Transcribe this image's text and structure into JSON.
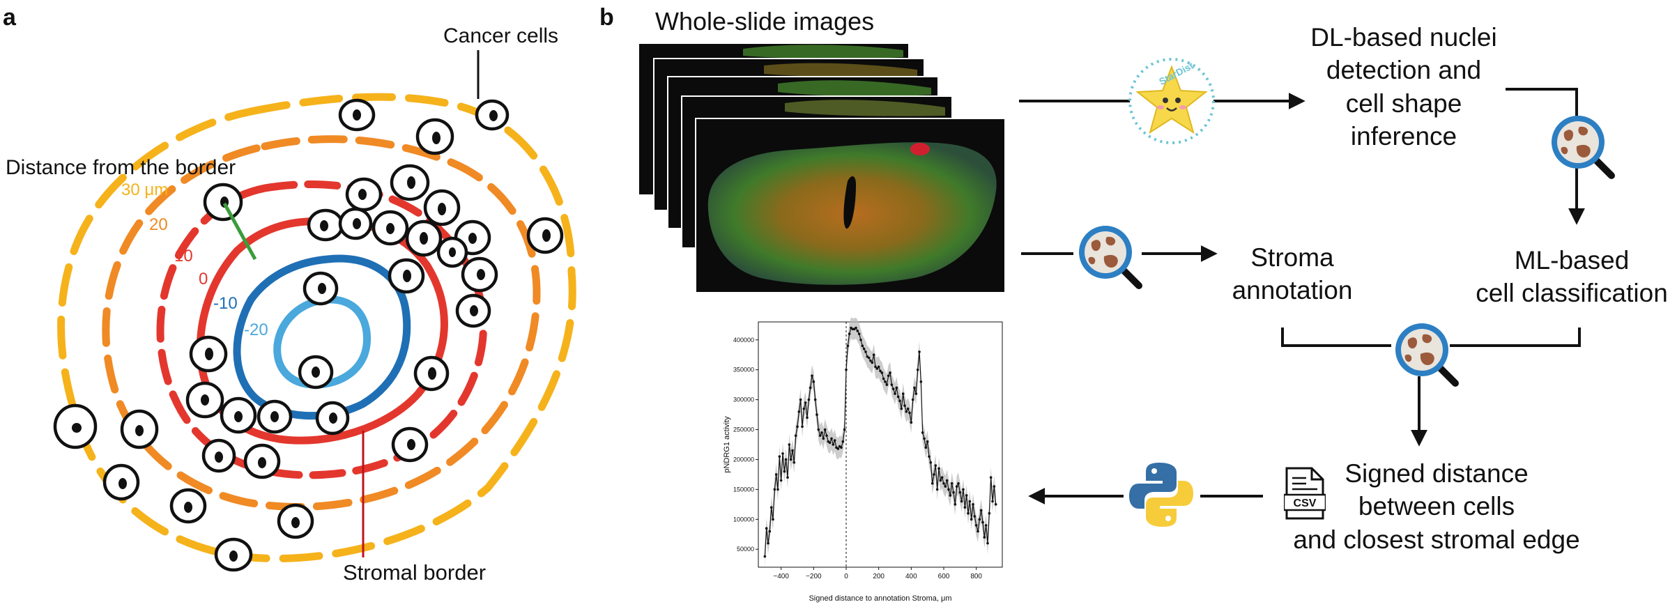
{
  "panel_a": {
    "letter": "a",
    "cancer_cells_label": "Cancer cells",
    "distance_label": "Distance from the border",
    "stromal_border_label": "Stromal border",
    "contour_labels": [
      {
        "text": "30 μm",
        "color": "#f5b21b"
      },
      {
        "text": "20",
        "color": "#f08a24"
      },
      {
        "text": "10",
        "color": "#e3372e"
      },
      {
        "text": "0",
        "color": "#e3372e"
      },
      {
        "text": "-10",
        "color": "#1f6fb5"
      },
      {
        "text": "-20",
        "color": "#4aa8dc"
      }
    ]
  },
  "panel_b": {
    "letter": "b",
    "wsi_title": "Whole-slide images",
    "stardist_text": "StarDist",
    "dl_step": [
      "DL-based nuclei",
      "detection and",
      "cell shape",
      "inference"
    ],
    "ml_step": [
      "ML-based",
      "cell classification"
    ],
    "stroma_step": [
      "Stroma",
      "annotation"
    ],
    "distance_step": [
      "Signed distance",
      "between cells",
      "and closest stromal edge"
    ],
    "csv_label": "CSV"
  },
  "chart_data": {
    "type": "line",
    "xlabel": "Signed distance to annotation Stroma, μm",
    "ylabel": "pNDRG1 activity",
    "xlim": [
      -540,
      960
    ],
    "ylim": [
      20000,
      430000
    ],
    "xticks": [
      -400,
      -200,
      0,
      200,
      400,
      600,
      800
    ],
    "yticks": [
      50000,
      100000,
      150000,
      200000,
      250000,
      300000,
      350000,
      400000
    ],
    "vline_x": 0,
    "series": [
      {
        "x": [
          -500,
          -490,
          -480,
          -470,
          -460,
          -450,
          -440,
          -430,
          -420,
          -410,
          -400,
          -390,
          -380,
          -370,
          -360,
          -350,
          -340,
          -330,
          -320,
          -310,
          -300,
          -290,
          -280,
          -270,
          -260,
          -250,
          -240,
          -230,
          -220,
          -210,
          -200,
          -190,
          -180,
          -170,
          -160,
          -150,
          -140,
          -130,
          -120,
          -110,
          -100,
          -90,
          -80,
          -70,
          -60,
          -50,
          -40,
          -30,
          -20,
          -10,
          0,
          10,
          20,
          30,
          40,
          50,
          60,
          70,
          80,
          90,
          100,
          110,
          120,
          130,
          140,
          150,
          160,
          170,
          180,
          190,
          200,
          210,
          220,
          230,
          240,
          250,
          260,
          270,
          280,
          290,
          300,
          310,
          320,
          330,
          340,
          350,
          360,
          370,
          380,
          390,
          400,
          410,
          420,
          430,
          440,
          450,
          460,
          470,
          480,
          490,
          500,
          510,
          520,
          530,
          540,
          550,
          560,
          570,
          580,
          590,
          600,
          610,
          620,
          630,
          640,
          650,
          660,
          670,
          680,
          690,
          700,
          710,
          720,
          730,
          740,
          750,
          760,
          770,
          780,
          790,
          800,
          810,
          820,
          830,
          840,
          850,
          860,
          870,
          880,
          890,
          900,
          910,
          920
        ],
        "y": [
          38000,
          85000,
          60000,
          80000,
          120000,
          100000,
          150000,
          175000,
          150000,
          205000,
          165000,
          210000,
          180000,
          200000,
          170000,
          225000,
          200000,
          215000,
          195000,
          240000,
          255000,
          280000,
          300000,
          255000,
          285000,
          295000,
          270000,
          300000,
          320000,
          340000,
          330000,
          300000,
          275000,
          250000,
          240000,
          245000,
          235000,
          250000,
          240000,
          230000,
          228000,
          235000,
          225000,
          232000,
          220000,
          218000,
          222000,
          220000,
          230000,
          250000,
          350000,
          390000,
          410000,
          420000,
          418000,
          418000,
          420000,
          415000,
          410000,
          400000,
          390000,
          385000,
          380000,
          372000,
          370000,
          365000,
          362000,
          375000,
          355000,
          352000,
          355000,
          348000,
          345000,
          335000,
          330000,
          325000,
          340000,
          345000,
          325000,
          318000,
          310000,
          320000,
          305000,
          298000,
          285000,
          310000,
          290000,
          280000,
          285000,
          278000,
          262000,
          300000,
          320000,
          310000,
          350000,
          380000,
          330000,
          245000,
          235000,
          220000,
          230000,
          205000,
          195000,
          160000,
          175000,
          190000,
          150000,
          185000,
          165000,
          170000,
          160000,
          155000,
          165000,
          150000,
          140000,
          160000,
          145000,
          125000,
          155000,
          160000,
          145000,
          130000,
          150000,
          120000,
          140000,
          110000,
          130000,
          100000,
          125000,
          105000,
          90000,
          80000,
          100000,
          115000,
          95000,
          70000,
          90000,
          60000,
          110000,
          170000,
          130000,
          155000,
          125000
        ],
        "band": 18000
      }
    ]
  }
}
